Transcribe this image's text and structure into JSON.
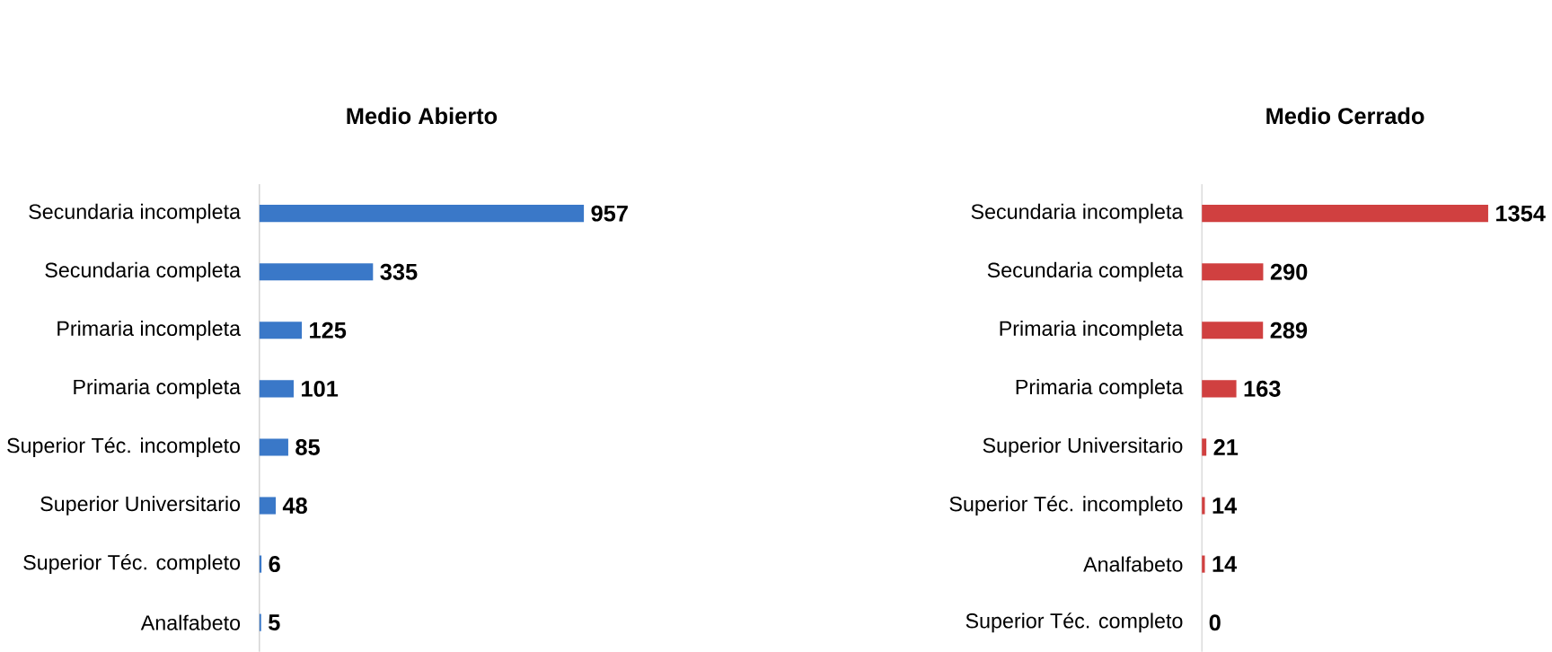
{
  "chart_data": [
    {
      "type": "bar",
      "orientation": "horizontal",
      "title": "Medio Abierto",
      "categories": [
        "Secundaria incompleta",
        "Secundaria completa",
        "Primaria incompleta",
        "Primaria completa",
        "Superior Téc. incompleto",
        "Superior Universitario",
        "Superior Téc. completo",
        "Analfabeto"
      ],
      "values": [
        957,
        335,
        125,
        101,
        85,
        48,
        6,
        5
      ],
      "color": "#3a78c8",
      "data_labels": true
    },
    {
      "type": "bar",
      "orientation": "horizontal",
      "title": "Medio Cerrado",
      "categories": [
        "Secundaria incompleta",
        "Secundaria completa",
        "Primaria incompleta",
        "Primaria completa",
        "Superior Universitario",
        "Superior Téc. incompleto",
        "Analfabeto",
        "Superior Téc. completo"
      ],
      "values": [
        1354,
        290,
        289,
        163,
        21,
        14,
        14,
        0
      ],
      "color": "#d04040",
      "data_labels": true
    }
  ]
}
